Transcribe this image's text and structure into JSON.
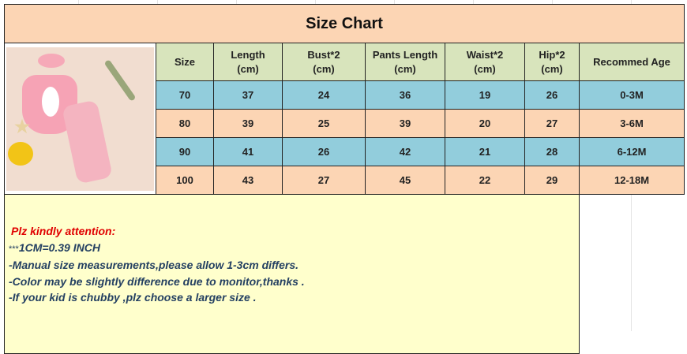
{
  "title": "Size Chart",
  "headers": [
    [
      "Size"
    ],
    [
      "Length",
      "(cm)"
    ],
    [
      "Bust*2",
      "(cm)"
    ],
    [
      "Pants Length",
      "(cm)"
    ],
    [
      "Waist*2",
      "(cm)"
    ],
    [
      "Hip*2",
      "(cm)"
    ],
    [
      "Recommed Age"
    ]
  ],
  "rows": [
    [
      "70",
      "37",
      "24",
      "36",
      "19",
      "26",
      "0-3M"
    ],
    [
      "80",
      "39",
      "25",
      "39",
      "20",
      "27",
      "3-6M"
    ],
    [
      "90",
      "41",
      "26",
      "42",
      "21",
      "28",
      "6-12M"
    ],
    [
      "100",
      "43",
      "27",
      "45",
      "22",
      "29",
      "12-18M"
    ]
  ],
  "row_colors": [
    "#92cddc",
    "#fcd5b4",
    "#92cddc",
    "#fcd5b4"
  ],
  "notes": {
    "heading": "Plz kindly attention:",
    "stars": "***",
    "conversion": "1CM=0.39 INCH",
    "lines": [
      "-Manual size measurements,please allow 1-3cm differs.",
      "-Color may be slightly difference due to monitor,thanks .",
      "-If your kid is chubby ,plz choose a larger size ."
    ]
  },
  "colors": {
    "title_bg": "#fcd5b4",
    "header_bg": "#d8e4bc",
    "notes_bg": "#ffffcc",
    "notes_text": "#244062",
    "heading_red": "#e00000"
  },
  "product_image": "pink bunny romper with leopard-heart pants and headband"
}
